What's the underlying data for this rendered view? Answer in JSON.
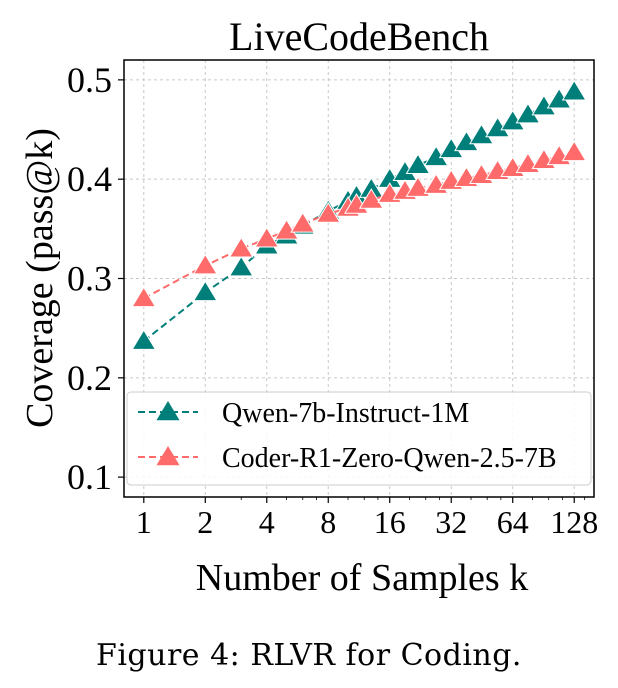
{
  "chart_data": {
    "type": "line",
    "title": "LiveCodeBench",
    "xlabel": "Number of Samples k",
    "ylabel": "Coverage (pass@k)",
    "x_scale": "log2",
    "xlim": [
      0.8,
      160
    ],
    "ylim": [
      0.08,
      0.52
    ],
    "x_ticks": [
      1,
      2,
      4,
      8,
      16,
      32,
      64,
      128
    ],
    "x_tick_labels": [
      "1",
      "2",
      "4",
      "8",
      "16",
      "32",
      "64",
      "128"
    ],
    "y_ticks": [
      0.1,
      0.2,
      0.3,
      0.4,
      0.5
    ],
    "y_tick_labels": [
      "0.1",
      "0.2",
      "0.3",
      "0.4",
      "0.5"
    ],
    "grid": true,
    "legend_position": "lower-right",
    "x": [
      1,
      2,
      3,
      4,
      5,
      6,
      8,
      10,
      11,
      13,
      16,
      19,
      22,
      27,
      32,
      38,
      45,
      54,
      64,
      76,
      91,
      108,
      128
    ],
    "series": [
      {
        "name": "Qwen-7b-Instruct-1M",
        "color": "#007f7a",
        "marker": "triangle",
        "linestyle": "dashed",
        "values": [
          0.237,
          0.286,
          0.311,
          0.333,
          0.343,
          0.353,
          0.368,
          0.378,
          0.383,
          0.39,
          0.4,
          0.407,
          0.414,
          0.422,
          0.43,
          0.437,
          0.444,
          0.451,
          0.458,
          0.465,
          0.473,
          0.48,
          0.488
        ]
      },
      {
        "name": "Coder-R1-Zero-Qwen-2.5-7B",
        "color": "#ff6b6b",
        "marker": "triangle",
        "linestyle": "dashed",
        "values": [
          0.28,
          0.313,
          0.33,
          0.34,
          0.348,
          0.355,
          0.365,
          0.371,
          0.374,
          0.379,
          0.385,
          0.388,
          0.391,
          0.394,
          0.398,
          0.401,
          0.404,
          0.408,
          0.411,
          0.415,
          0.419,
          0.423,
          0.427
        ]
      }
    ]
  },
  "caption": "Figure 4: RLVR for Coding."
}
